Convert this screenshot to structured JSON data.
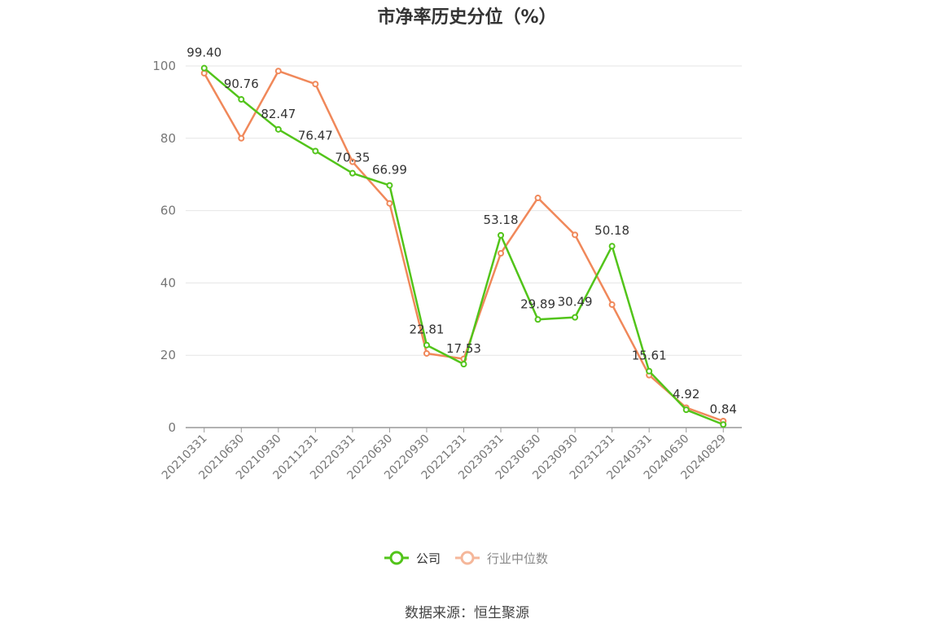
{
  "title": "市净率历史分位（%）",
  "source": "数据来源：恒生聚源",
  "colors": {
    "company": "#52c41a",
    "industry": "#f0885a",
    "grid": "#e6e6e6",
    "axis": "#999999",
    "tick": "#777777"
  },
  "legend": {
    "company": "公司",
    "industry": "行业中位数"
  },
  "chart_data": {
    "type": "line",
    "title": "市净率历史分位（%）",
    "categories": [
      "20210331",
      "20210630",
      "20210930",
      "20211231",
      "20220331",
      "20220630",
      "20220930",
      "20221231",
      "20230331",
      "20230630",
      "20230930",
      "20231231",
      "20240331",
      "20240630",
      "20240829"
    ],
    "ylim": [
      0,
      100
    ],
    "yticks": [
      0,
      20,
      40,
      60,
      80,
      100
    ],
    "grid": true,
    "legend_position": "bottom",
    "series": [
      {
        "name": "公司",
        "color": "#52c41a",
        "show_labels": true,
        "values": [
          99.4,
          90.76,
          82.47,
          76.47,
          70.35,
          66.99,
          22.81,
          17.53,
          53.18,
          29.89,
          30.49,
          50.18,
          15.61,
          4.92,
          0.84
        ]
      },
      {
        "name": "行业中位数",
        "color": "#f0885a",
        "show_labels": false,
        "values": [
          98.0,
          80.0,
          98.6,
          95.0,
          73.5,
          62.0,
          20.5,
          19.0,
          48.2,
          63.5,
          53.3,
          34.0,
          14.5,
          5.5,
          1.8
        ]
      }
    ],
    "labels": [
      "99.40",
      "90.76",
      "82.47",
      "76.47",
      "70.35",
      "66.99",
      "22.81",
      "17.53",
      "53.18",
      "29.89",
      "30.49",
      "50.18",
      "15.61",
      "4.92",
      "0.84"
    ]
  }
}
